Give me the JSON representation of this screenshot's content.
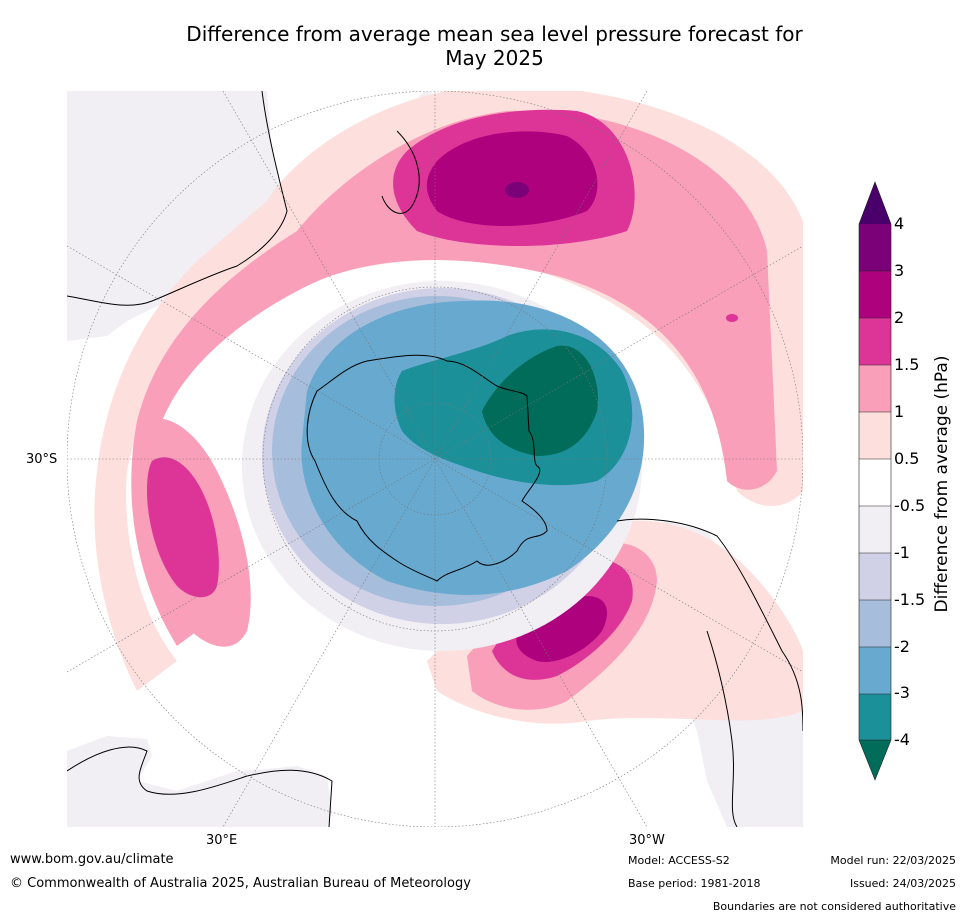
{
  "title": {
    "line1": "Difference from average mean sea level pressure forecast for",
    "line2": "May 2025"
  },
  "map": {
    "projection": "south-polar-stereographic",
    "lat_label": "30°S",
    "lon_labels": {
      "left": "30°E",
      "right": "30°W"
    },
    "colors": {
      "land": "#f1eef4",
      "gridline": "#777777",
      "coast": "#000000",
      "boundary": "#888888"
    }
  },
  "colorbar": {
    "label": "Difference from average (hPa)",
    "ticks": [
      "4",
      "3",
      "2",
      "1.5",
      "1",
      "0.5",
      "-0.5",
      "-1",
      "-1.5",
      "-2",
      "-3",
      "-4"
    ],
    "colors_top_to_bottom": [
      "#4a006a",
      "#7a0177",
      "#ae017e",
      "#dd3497",
      "#f99fba",
      "#fde0dd",
      "#ffffff",
      "#f1eef4",
      "#d0d1e6",
      "#a6bddb",
      "#67a9cf",
      "#1c9099",
      "#016c59"
    ]
  },
  "footer": {
    "url": "www.bom.gov.au/climate",
    "copyright": "© Commonwealth of Australia 2025, Australian Bureau of Meteorology",
    "model": "Model: ACCESS-S2",
    "base_period": "Base period: 1981-2018",
    "model_run": "Model run: 22/03/2025",
    "issued": "Issued: 24/03/2025",
    "disclaimer": "Boundaries are not considered authoritative"
  }
}
